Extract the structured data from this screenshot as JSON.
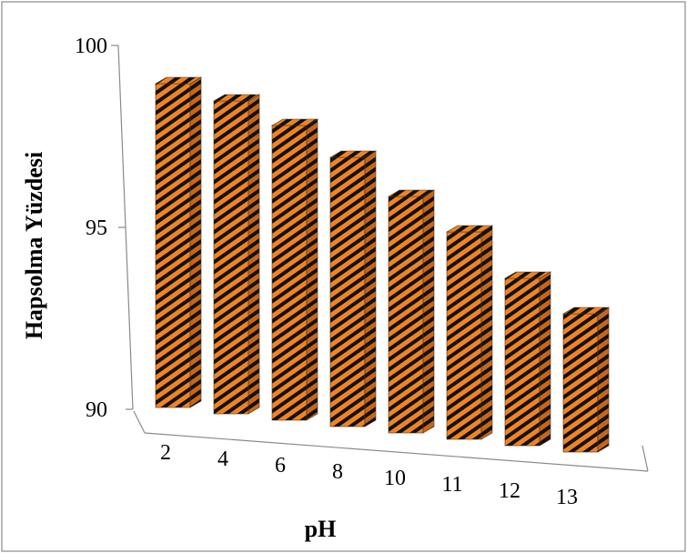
{
  "chart_data": {
    "type": "bar",
    "title": "",
    "xlabel": "pH",
    "ylabel": "Hapsolma Yüzdesi",
    "categories": [
      "2",
      "4",
      "6",
      "8",
      "10",
      "11",
      "12",
      "13"
    ],
    "values": [
      98.9,
      98.6,
      98.1,
      97.4,
      96.5,
      95.7,
      94.6,
      93.8
    ],
    "ylim": [
      90,
      100
    ],
    "yticks": [
      "90",
      "95",
      "100"
    ],
    "grid": false,
    "legend": "none",
    "projection": "3d",
    "bar_color": "#f08424",
    "stripe_color": "#111111",
    "side_color": "#c8661a",
    "top_color": "#f5a050"
  }
}
